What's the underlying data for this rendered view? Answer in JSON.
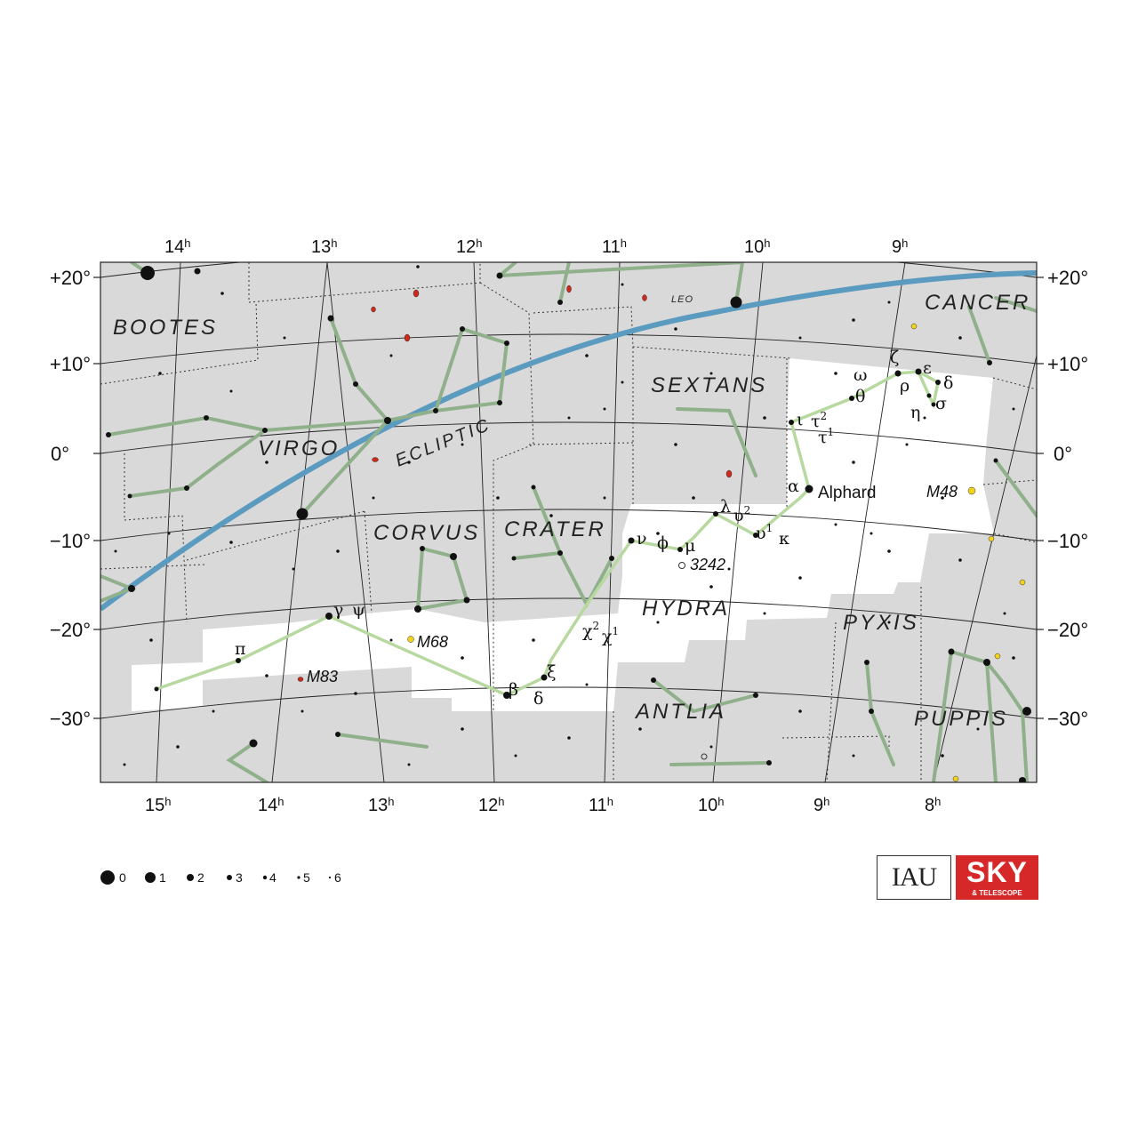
{
  "ra_top": [
    "14",
    "13",
    "12",
    "11",
    "10",
    "9"
  ],
  "ra_bottom": [
    "15",
    "14",
    "13",
    "12",
    "11",
    "10",
    "9",
    "8"
  ],
  "ra_suffix": "h",
  "dec_labels": [
    "+20°",
    "+10°",
    "0°",
    "−10°",
    "−20°",
    "−30°"
  ],
  "constellations": {
    "bootes": "BOOTES",
    "virgo": "VIRGO",
    "leo": "LEO",
    "cancer": "CANCER",
    "sextans": "SEXTANS",
    "corvus": "CORVUS",
    "crater": "CRATER",
    "hydra": "HYDRA",
    "pyxis": "PYXIS",
    "antlia": "ANTLIA",
    "puppis": "PUPPIS"
  },
  "ecliptic_label": "ECLIPTIC",
  "star_names": {
    "alphard": "Alphard"
  },
  "greek": {
    "omega": "ω",
    "zeta": "ζ",
    "epsilon": "ε",
    "rho": "ρ",
    "delta": "δ",
    "theta": "θ",
    "eta": "η",
    "sigma": "σ",
    "iota": "ι",
    "tau2": "τ",
    "tau2_sup": "2",
    "tau1": "τ",
    "tau1_sup": "1",
    "alpha": "α",
    "lambda": "λ",
    "upsilon2": "υ",
    "upsilon2_sup": "2",
    "upsilon1": "υ",
    "upsilon1_sup": "1",
    "kappa": "κ",
    "nu": "ν",
    "phi": "ϕ",
    "mu": "μ",
    "chi2": "χ",
    "chi2_sup": "2",
    "chi1": "χ",
    "chi1_sup": "1",
    "xi": "ξ",
    "beta": "β",
    "delta2": "δ",
    "gamma": "γ",
    "psi": "ψ",
    "pi": "π"
  },
  "dso": {
    "m48": "M48",
    "n3242": "3242",
    "m68": "M68",
    "m83": "M83"
  },
  "legend": [
    "0",
    "1",
    "2",
    "3",
    "4",
    "5",
    "6"
  ],
  "logos": {
    "iau": "IAU",
    "sky": "SKY",
    "telescope": "& TELESCOPE"
  },
  "colors": {
    "sky_gray": "#d9d9d9",
    "hydra_white": "#ffffff",
    "ecliptic": "#5b9bc0",
    "stick_green": "#8fb08a",
    "hydra_stick": "#b7d9a0",
    "logo_red": "#d62828"
  }
}
